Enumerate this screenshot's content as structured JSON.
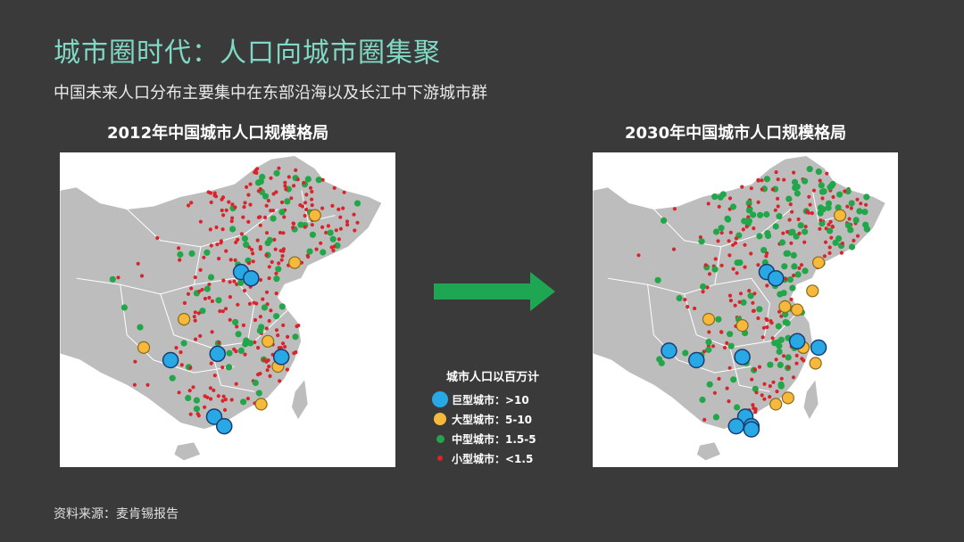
{
  "title": "城市圈时代：人口向城市圈集聚",
  "subtitle": "中国未来人口分布主要集中在东部沿海以及长江中下游城市群",
  "maps": {
    "left_title": "2012年中国城市人口规模格局",
    "right_title": "2030年中国城市人口规模格局"
  },
  "legend": {
    "title": "城市人口以百万计",
    "items": [
      {
        "label": "巨型城市：>10",
        "color": "#29a8e6"
      },
      {
        "label": "大型城市：5-10",
        "color": "#f6b93b"
      },
      {
        "label": "中型城市：1.5-5",
        "color": "#22a64a"
      },
      {
        "label": "小型城市：<1.5",
        "color": "#d8252b"
      }
    ]
  },
  "source": "资料来源：麦肯锡报告",
  "colors": {
    "title": "#7fd9c4",
    "background": "#3a3a3a",
    "land": "#bdbdbd",
    "arrow": "#1fa653",
    "mega": "#29a8e6",
    "large": "#f6b93b",
    "medium": "#22a64a",
    "small": "#d8252b"
  }
}
